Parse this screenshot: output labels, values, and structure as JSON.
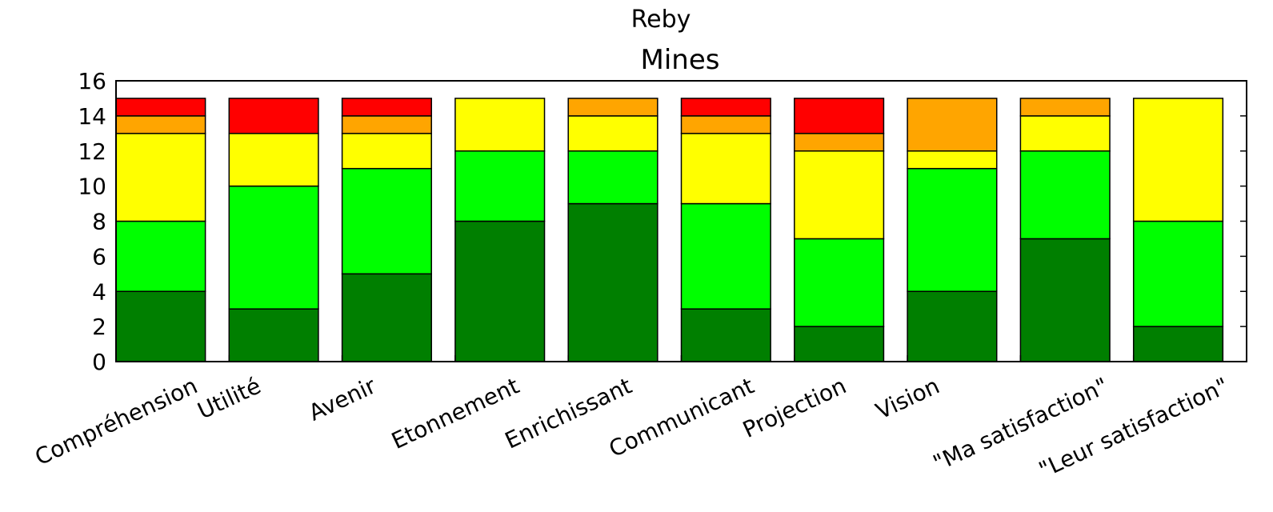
{
  "chart_data": {
    "type": "stacked_bar",
    "suptitle": "Reby",
    "title": "Mines",
    "categories": [
      "Compréhension",
      "Utilité",
      "Avenir",
      "Etonnement",
      "Enrichissant",
      "Communicant",
      "Projection",
      "Vision",
      "\"Ma satisfaction\"",
      "\"Leur satisfaction\""
    ],
    "series": [
      {
        "color": "#007f00",
        "values": [
          4,
          3,
          5,
          8,
          9,
          3,
          2,
          4,
          7,
          2
        ]
      },
      {
        "color": "#00ff00",
        "values": [
          4,
          7,
          6,
          4,
          3,
          6,
          5,
          7,
          5,
          6
        ]
      },
      {
        "color": "#ffff00",
        "values": [
          5,
          3,
          2,
          3,
          2,
          4,
          5,
          1,
          2,
          7
        ]
      },
      {
        "color": "#ffa500",
        "values": [
          1,
          0,
          1,
          0,
          1,
          1,
          1,
          3,
          1,
          0
        ]
      },
      {
        "color": "#ff0000",
        "values": [
          1,
          2,
          1,
          0,
          0,
          1,
          2,
          0,
          0,
          0
        ]
      }
    ],
    "ylim": [
      0,
      16
    ],
    "yticks": [
      0,
      2,
      4,
      6,
      8,
      10,
      12,
      14,
      16
    ]
  }
}
